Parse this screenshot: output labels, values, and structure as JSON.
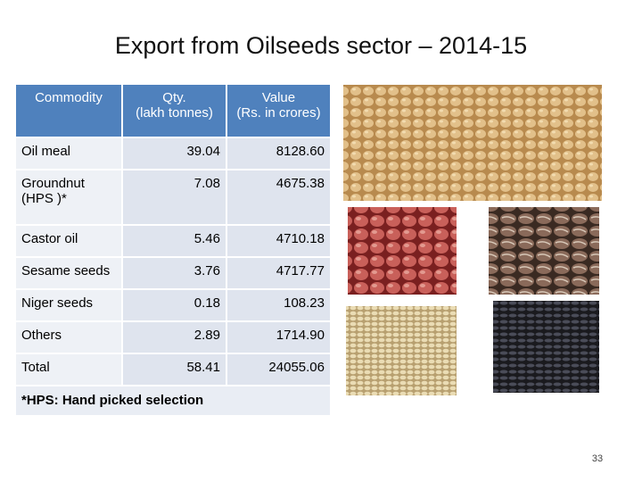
{
  "title": "Export from Oilseeds sector – 2014-15",
  "table": {
    "header": [
      "Commodity",
      "Qty.\n(lakh tonnes)",
      "Value\n(Rs. in crores)"
    ],
    "rows": [
      [
        "Oil meal",
        "39.04",
        "8128.60"
      ],
      [
        "Groundnut\n(HPS )*",
        "7.08",
        "4675.38"
      ],
      [
        "Castor oil",
        "5.46",
        "4710.18"
      ],
      [
        "Sesame seeds",
        "3.76",
        "4717.77"
      ],
      [
        "Niger seeds",
        "0.18",
        "108.23"
      ],
      [
        "Others",
        "2.89",
        "1714.90"
      ],
      [
        "Total",
        "58.41",
        "24055.06"
      ]
    ],
    "footnote": "*HPS: Hand picked selection"
  },
  "page_number": "33"
}
